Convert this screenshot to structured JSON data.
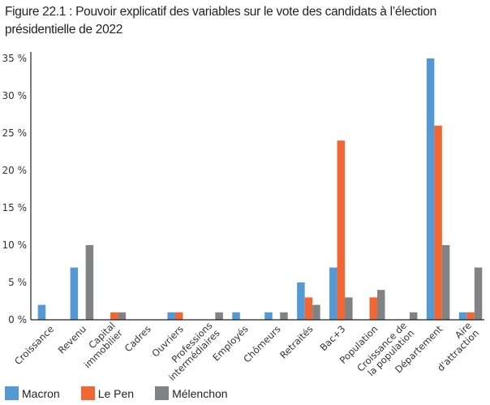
{
  "chart_data": {
    "type": "bar",
    "title": "Figure 22.1 : Pouvoir explicatif des variables sur le vote des candidats à l’élection présidentielle de 2022",
    "title_lines": [
      "Figure 22.1 : Pouvoir explicatif des variables sur le vote des candidats à l’élection",
      "présidentielle de 2022"
    ],
    "xlabel": "",
    "ylabel": "",
    "ylim": [
      0,
      35
    ],
    "yticks": [
      0,
      5,
      10,
      15,
      20,
      25,
      30,
      35
    ],
    "ytick_labels": [
      "0 %",
      "5 %",
      "10 %",
      "15 %",
      "20 %",
      "25 %",
      "30 %",
      "35 %"
    ],
    "grid": false,
    "legend_position": "bottom-left",
    "categories": [
      [
        "Croissance"
      ],
      [
        "Revenu"
      ],
      [
        "Capital",
        "immobilier"
      ],
      [
        "Cadres"
      ],
      [
        "Ouvriers"
      ],
      [
        "Professions",
        "intermédiaires"
      ],
      [
        "Employés"
      ],
      [
        "Chômeurs"
      ],
      [
        "Retraités"
      ],
      [
        "Bac+3"
      ],
      [
        "Population"
      ],
      [
        "Croissance de",
        "la population"
      ],
      [
        "Département"
      ],
      [
        "Aire",
        "d'attraction"
      ]
    ],
    "series": [
      {
        "name": "Macron",
        "color": "#5499d4",
        "values": [
          2,
          7,
          0,
          0,
          1,
          0,
          1,
          1,
          5,
          7,
          0,
          0,
          35,
          1
        ]
      },
      {
        "name": "Le Pen",
        "color": "#f26633",
        "values": [
          0,
          0,
          1,
          0,
          1,
          0,
          0,
          0,
          3,
          24,
          3,
          0,
          26,
          1
        ]
      },
      {
        "name": "Mélenchon",
        "color": "#7f8383",
        "values": [
          0,
          10,
          1,
          0,
          0,
          1,
          0,
          1,
          2,
          3,
          4,
          1,
          10,
          7
        ]
      }
    ]
  }
}
